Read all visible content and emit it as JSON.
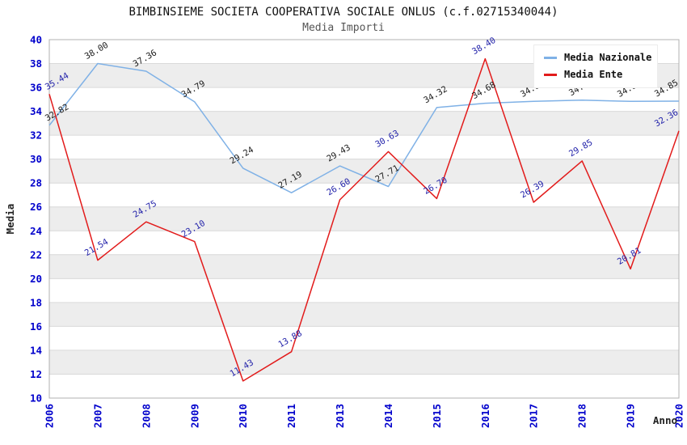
{
  "header": {
    "title": "BIMBINSIEME SOCIETA COOPERATIVA SOCIALE ONLUS (c.f.02715340044)",
    "subtitle": "Media Importi"
  },
  "chart_data": {
    "type": "line",
    "x": [
      "2006",
      "2007",
      "2008",
      "2009",
      "2010",
      "2011",
      "2013",
      "2014",
      "2015",
      "2016",
      "2017",
      "2018",
      "2019",
      "2020"
    ],
    "series": [
      {
        "name": "Media Nazionale",
        "color": "#7fb1e6",
        "label_color": "#1a1a1a",
        "values": [
          32.82,
          38.0,
          37.36,
          34.79,
          29.24,
          27.19,
          29.43,
          27.71,
          34.32,
          34.68,
          34.83,
          34.94,
          34.83,
          34.85
        ]
      },
      {
        "name": "Media Ente",
        "color": "#e21b1b",
        "label_color": "#2222aa",
        "values": [
          35.44,
          21.54,
          24.75,
          23.1,
          11.43,
          13.88,
          26.6,
          30.63,
          26.7,
          38.4,
          26.39,
          29.85,
          20.81,
          32.36
        ]
      }
    ],
    "xlabel": "Anno",
    "ylabel": "Media",
    "ylim": [
      10,
      40
    ],
    "ytick_step": 2,
    "yticks": [
      10,
      12,
      14,
      16,
      18,
      20,
      22,
      24,
      26,
      28,
      30,
      32,
      34,
      36,
      38,
      40
    ],
    "grid": true,
    "legend_position": "top-right",
    "tick_label_color": "#0000cc",
    "axis_label_color": "#222222",
    "band_colors": [
      "#ffffff",
      "#ededed"
    ],
    "gridline_color": "#d9d9d9",
    "frame_color": "#b0b0b0"
  }
}
